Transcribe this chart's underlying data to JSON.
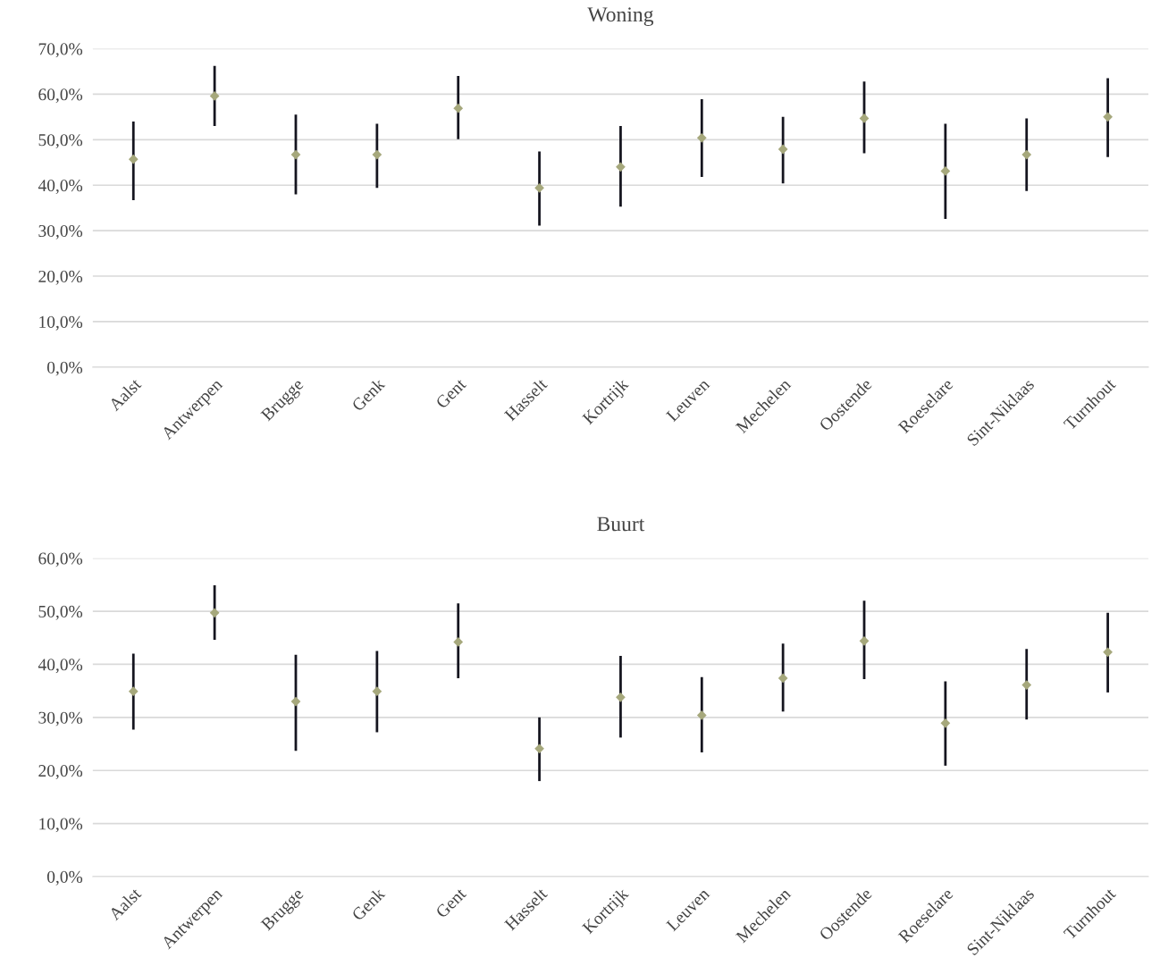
{
  "chart_data": [
    {
      "type": "scatter",
      "title": "Woning",
      "categories": [
        "Aalst",
        "Antwerpen",
        "Brugge",
        "Genk",
        "Gent",
        "Hasselt",
        "Kortrijk",
        "Leuven",
        "Mechelen",
        "Oostende",
        "Roeselare",
        "Sint-Niklaas",
        "Turnhout"
      ],
      "series": [
        {
          "color": "#a6a87c",
          "values": [
            45.7,
            59.6,
            46.7,
            46.7,
            56.9,
            39.4,
            44.0,
            50.4,
            47.9,
            54.7,
            43.1,
            46.7,
            55.0
          ],
          "errors": [
            [
              36.7,
              54.0
            ],
            [
              53.0,
              66.2
            ],
            [
              38.0,
              55.5
            ],
            [
              39.4,
              53.5
            ],
            [
              50.1,
              64.0
            ],
            [
              31.1,
              47.4
            ],
            [
              35.3,
              53.0
            ],
            [
              41.8,
              58.9
            ],
            [
              40.4,
              55.0
            ],
            [
              47.0,
              62.8
            ],
            [
              32.6,
              53.5
            ],
            [
              38.7,
              54.7
            ],
            [
              46.2,
              63.5
            ]
          ]
        }
      ],
      "ylim": [
        0,
        70
      ],
      "yticks": [
        {
          "value": 0,
          "label": "0,0%"
        },
        {
          "value": 10,
          "label": "10,0%"
        },
        {
          "value": 20,
          "label": "20,0%"
        },
        {
          "value": 30,
          "label": "30,0%"
        },
        {
          "value": 40,
          "label": "40,0%"
        },
        {
          "value": 50,
          "label": "50,0%"
        },
        {
          "value": 60,
          "label": "60,0%"
        },
        {
          "value": 70,
          "label": "70,0%"
        }
      ],
      "grid": "y",
      "marker": "diamond"
    },
    {
      "type": "scatter",
      "title": "Buurt",
      "categories": [
        "Aalst",
        "Antwerpen",
        "Brugge",
        "Genk",
        "Gent",
        "Hasselt",
        "Kortrijk",
        "Leuven",
        "Mechelen",
        "Oostende",
        "Roeselare",
        "Sint-Niklaas",
        "Turnhout"
      ],
      "series": [
        {
          "color": "#a6a87c",
          "values": [
            34.9,
            49.7,
            33.0,
            34.9,
            44.2,
            24.1,
            33.8,
            30.4,
            37.4,
            44.4,
            28.9,
            36.1,
            42.3
          ],
          "errors": [
            [
              27.7,
              42.0
            ],
            [
              44.6,
              54.9
            ],
            [
              23.7,
              41.8
            ],
            [
              27.2,
              42.5
            ],
            [
              37.4,
              51.5
            ],
            [
              18.0,
              30.0
            ],
            [
              26.2,
              41.6
            ],
            [
              23.4,
              37.6
            ],
            [
              31.1,
              43.9
            ],
            [
              37.2,
              52.0
            ],
            [
              20.9,
              36.8
            ],
            [
              29.6,
              42.9
            ],
            [
              34.7,
              49.7
            ]
          ]
        }
      ],
      "ylim": [
        0,
        60
      ],
      "yticks": [
        {
          "value": 0,
          "label": "0,0%"
        },
        {
          "value": 10,
          "label": "10,0%"
        },
        {
          "value": 20,
          "label": "20,0%"
        },
        {
          "value": 30,
          "label": "30,0%"
        },
        {
          "value": 40,
          "label": "40,0%"
        },
        {
          "value": 50,
          "label": "50,0%"
        },
        {
          "value": 60,
          "label": "60,0%"
        }
      ],
      "grid": "y",
      "marker": "diamond"
    }
  ]
}
